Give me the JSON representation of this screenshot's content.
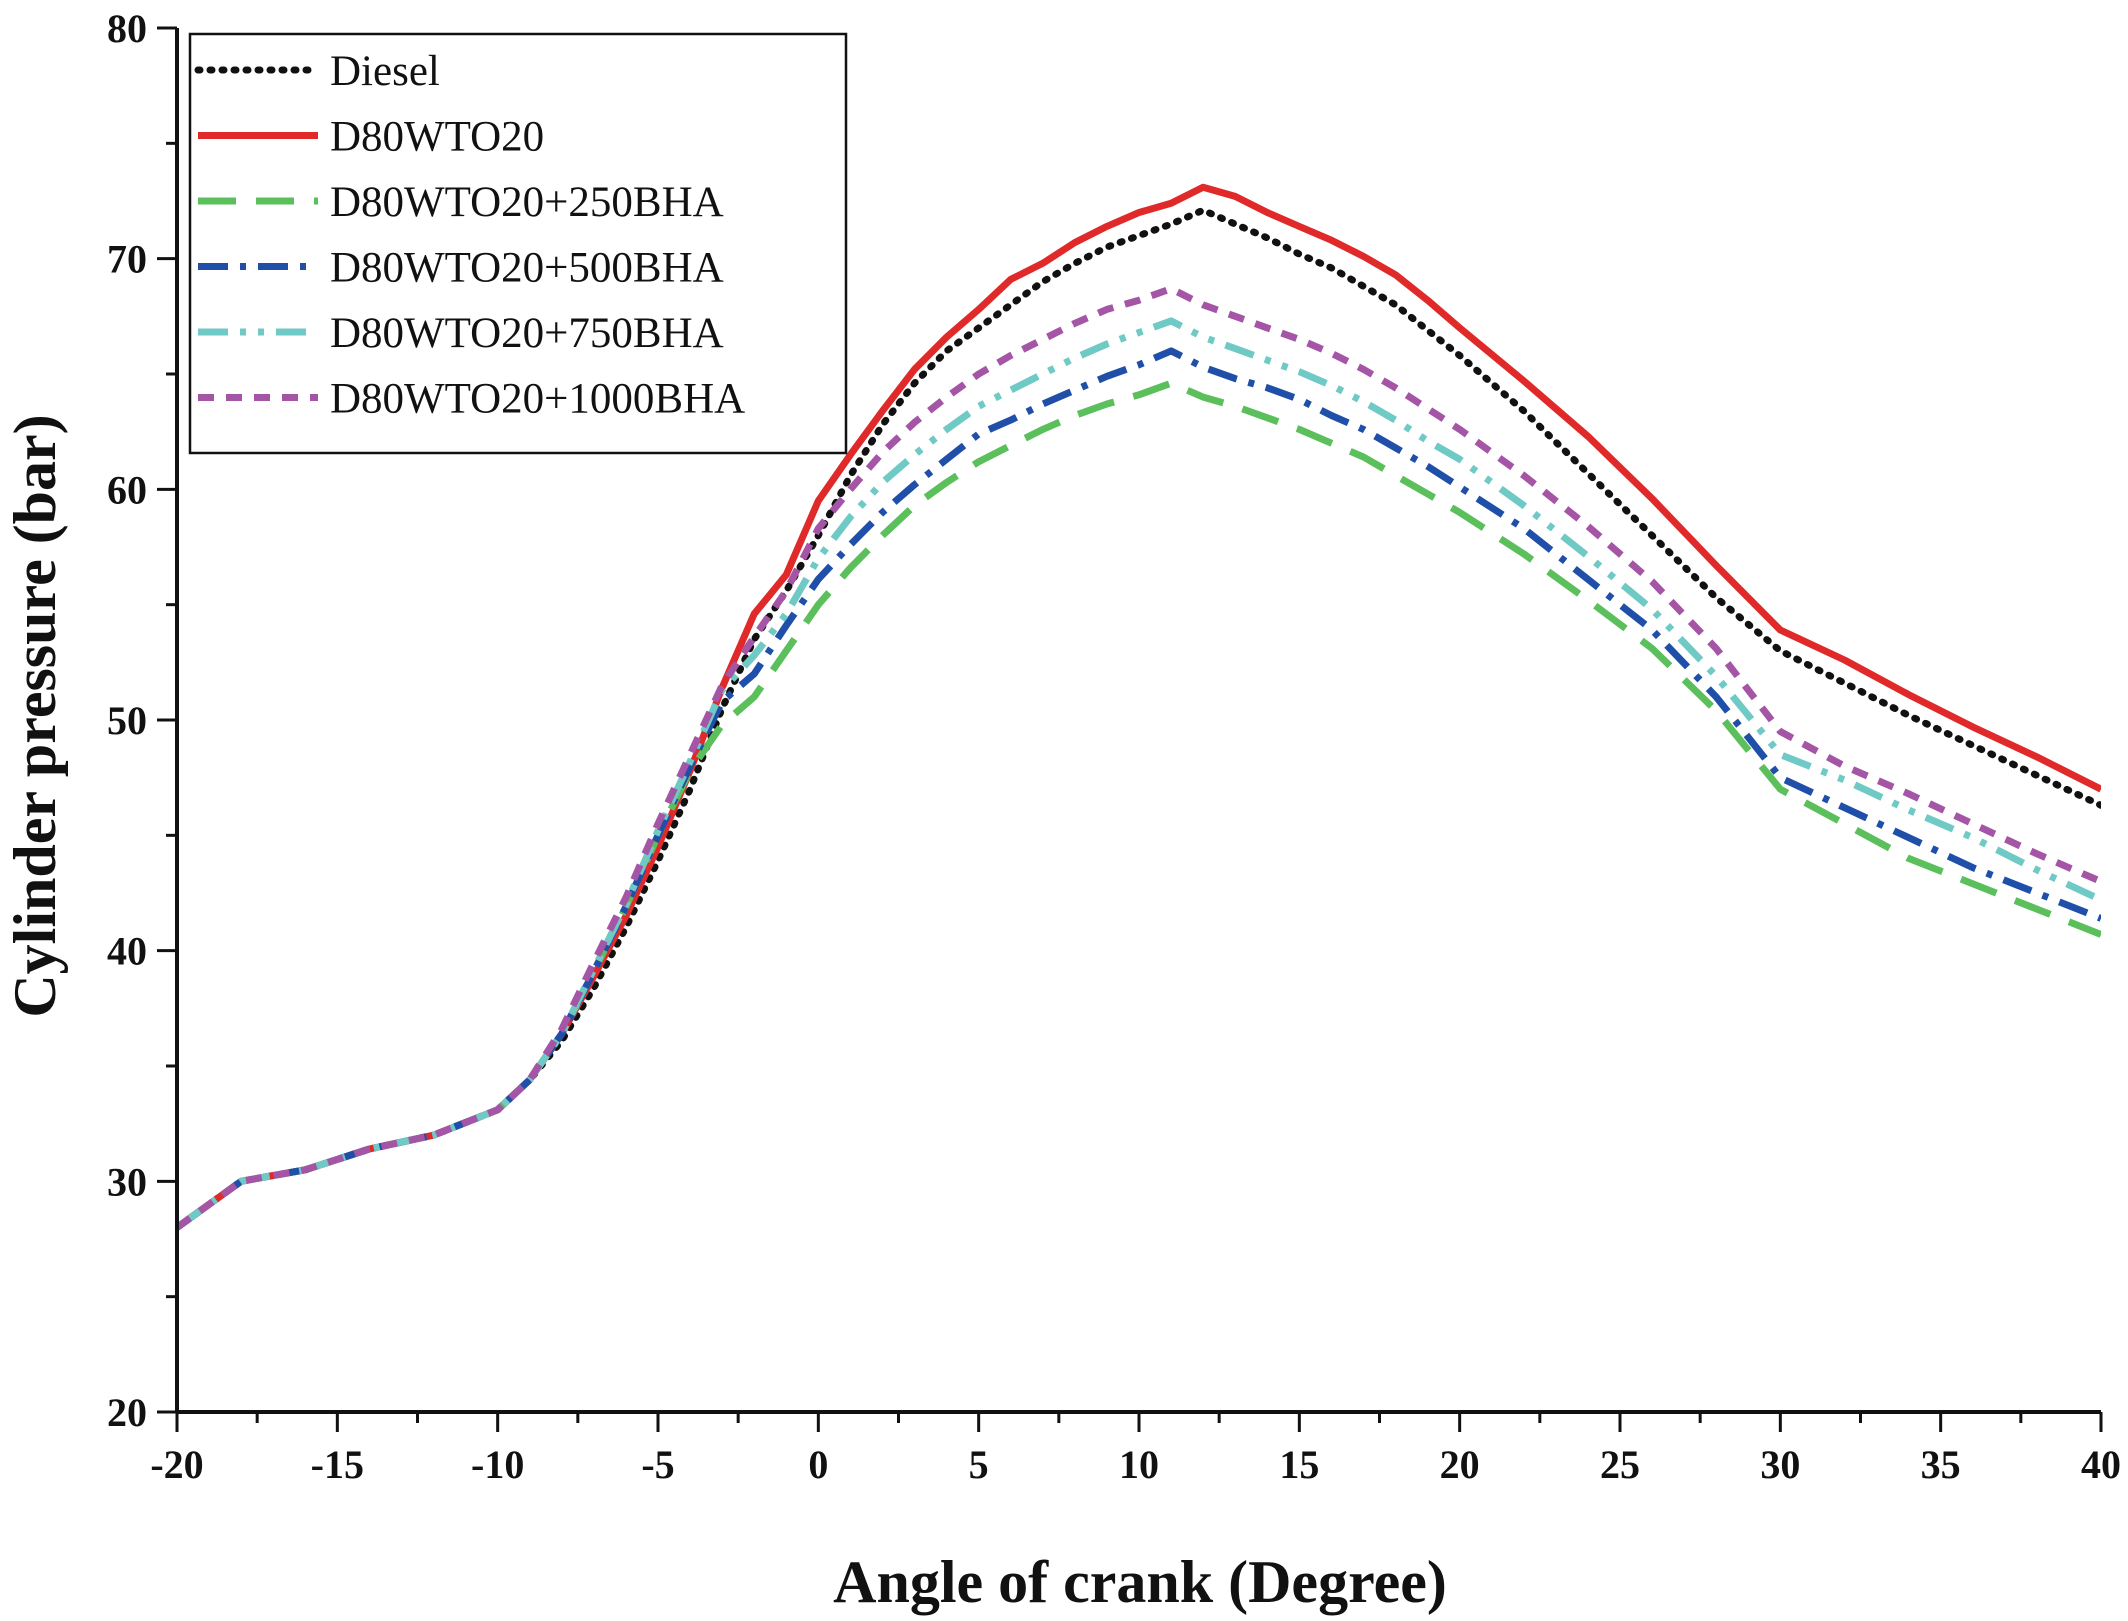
{
  "chart_data": {
    "type": "line",
    "title": "",
    "xlabel": "Angle of crank (Degree)",
    "ylabel": "Cylinder pressure (bar)",
    "xlim": [
      -20,
      40
    ],
    "ylim": [
      20,
      80
    ],
    "xticks": [
      -20,
      -15,
      -10,
      -5,
      0,
      5,
      10,
      15,
      20,
      25,
      30,
      35,
      40
    ],
    "yticks": [
      20,
      30,
      40,
      50,
      60,
      70,
      80
    ],
    "grid": false,
    "legend_position": "top-left",
    "series": [
      {
        "name": "Diesel",
        "color": "#111111",
        "dash": "dotted",
        "x": [
          -20,
          -18,
          -16,
          -14,
          -12,
          -10,
          -9,
          -8,
          -7,
          -6,
          -5,
          -4,
          -3,
          -2,
          -1,
          0,
          1,
          2,
          3,
          4,
          5,
          6,
          7,
          8,
          9,
          10,
          11,
          12,
          13,
          14,
          15,
          16,
          17,
          18,
          19,
          20,
          22,
          24,
          26,
          28,
          30,
          32,
          34,
          36,
          38,
          40
        ],
        "y": [
          28.0,
          30.0,
          30.5,
          31.4,
          32.0,
          33.1,
          34.4,
          36.1,
          38.4,
          41.0,
          43.9,
          47.0,
          50.5,
          53.5,
          55.6,
          58.0,
          60.6,
          62.8,
          64.6,
          66.0,
          67.0,
          68.0,
          69.0,
          69.8,
          70.5,
          71.0,
          71.5,
          72.1,
          71.5,
          70.9,
          70.2,
          69.6,
          68.8,
          68.0,
          66.9,
          65.8,
          63.4,
          60.7,
          58.0,
          55.3,
          53.0,
          51.6,
          50.2,
          48.9,
          47.6,
          46.3
        ]
      },
      {
        "name": "D80WTO20",
        "color": "#e02a2a",
        "dash": "solid",
        "x": [
          -20,
          -18,
          -16,
          -14,
          -12,
          -10,
          -9,
          -8,
          -7,
          -6,
          -5,
          -4,
          -3,
          -2,
          -1,
          0,
          1,
          2,
          3,
          4,
          5,
          6,
          7,
          8,
          9,
          10,
          11,
          12,
          13,
          14,
          15,
          16,
          17,
          18,
          19,
          20,
          22,
          24,
          26,
          28,
          30,
          32,
          34,
          36,
          38,
          40
        ],
        "y": [
          28.0,
          30.0,
          30.5,
          31.4,
          32.0,
          33.1,
          34.4,
          36.4,
          38.9,
          41.5,
          44.5,
          47.8,
          51.4,
          54.6,
          56.3,
          59.5,
          61.5,
          63.4,
          65.2,
          66.6,
          67.8,
          69.1,
          69.8,
          70.7,
          71.4,
          72.0,
          72.4,
          73.1,
          72.7,
          72.0,
          71.4,
          70.8,
          70.1,
          69.3,
          68.2,
          67.0,
          64.7,
          62.3,
          59.6,
          56.7,
          53.9,
          52.6,
          51.1,
          49.7,
          48.4,
          47.0
        ]
      },
      {
        "name": "D80WTO20+250BHA",
        "color": "#5bbf5b",
        "dash": "dashed",
        "x": [
          -20,
          -18,
          -16,
          -14,
          -12,
          -10,
          -9,
          -8,
          -7,
          -6,
          -5,
          -4,
          -3,
          -2,
          -1,
          0,
          1,
          2,
          3,
          4,
          5,
          6,
          7,
          8,
          9,
          10,
          11,
          12,
          13,
          14,
          15,
          16,
          17,
          18,
          19,
          20,
          22,
          24,
          26,
          28,
          30,
          32,
          34,
          36,
          38,
          40
        ],
        "y": [
          28.0,
          30.0,
          30.5,
          31.4,
          32.0,
          33.1,
          34.4,
          36.4,
          39.1,
          41.9,
          45.0,
          47.8,
          49.8,
          51.0,
          53.0,
          55.0,
          56.6,
          58.0,
          59.3,
          60.3,
          61.2,
          61.9,
          62.6,
          63.2,
          63.7,
          64.1,
          64.6,
          64.0,
          63.6,
          63.1,
          62.6,
          62.0,
          61.4,
          60.6,
          59.8,
          59.0,
          57.2,
          55.2,
          53.1,
          50.4,
          47.0,
          45.5,
          44.0,
          42.9,
          41.8,
          40.7
        ]
      },
      {
        "name": "D80WTO20+500BHA",
        "color": "#1f4fa8",
        "dash": "dashdot",
        "x": [
          -20,
          -18,
          -16,
          -14,
          -12,
          -10,
          -9,
          -8,
          -7,
          -6,
          -5,
          -4,
          -3,
          -2,
          -1,
          0,
          1,
          2,
          3,
          4,
          5,
          6,
          7,
          8,
          9,
          10,
          11,
          12,
          13,
          14,
          15,
          16,
          17,
          18,
          19,
          20,
          22,
          24,
          26,
          28,
          30,
          32,
          34,
          36,
          38,
          40
        ],
        "y": [
          28.0,
          30.0,
          30.5,
          31.4,
          32.0,
          33.1,
          34.4,
          36.4,
          39.1,
          41.9,
          45.0,
          48.0,
          50.8,
          52.0,
          54.1,
          56.1,
          57.6,
          59.0,
          60.2,
          61.3,
          62.4,
          63.0,
          63.7,
          64.3,
          64.9,
          65.4,
          66.0,
          65.3,
          64.8,
          64.4,
          63.9,
          63.2,
          62.6,
          61.8,
          61.0,
          60.1,
          58.3,
          56.1,
          53.9,
          51.0,
          47.5,
          46.2,
          44.9,
          43.6,
          42.5,
          41.4
        ]
      },
      {
        "name": "D80WTO20+750BHA",
        "color": "#6fc9c4",
        "dash": "dashdotdot",
        "x": [
          -20,
          -18,
          -16,
          -14,
          -12,
          -10,
          -9,
          -8,
          -7,
          -6,
          -5,
          -4,
          -3,
          -2,
          -1,
          0,
          1,
          2,
          3,
          4,
          5,
          6,
          7,
          8,
          9,
          10,
          11,
          12,
          13,
          14,
          15,
          16,
          17,
          18,
          19,
          20,
          22,
          24,
          26,
          28,
          30,
          32,
          34,
          36,
          38,
          40
        ],
        "y": [
          28.0,
          30.0,
          30.5,
          31.4,
          32.0,
          33.1,
          34.4,
          36.4,
          39.2,
          42.0,
          45.2,
          48.2,
          51.3,
          52.8,
          54.6,
          57.0,
          58.8,
          60.3,
          61.5,
          62.6,
          63.6,
          64.3,
          65.0,
          65.7,
          66.3,
          66.8,
          67.3,
          66.6,
          66.1,
          65.6,
          65.1,
          64.5,
          63.8,
          63.0,
          62.1,
          61.3,
          59.3,
          57.1,
          54.8,
          51.9,
          48.5,
          47.4,
          46.1,
          44.9,
          43.5,
          42.2
        ]
      },
      {
        "name": "D80WTO20+1000BHA",
        "color": "#a455a6",
        "dash": "shortdash",
        "x": [
          -20,
          -18,
          -16,
          -14,
          -12,
          -10,
          -9,
          -8,
          -7,
          -6,
          -5,
          -4,
          -3,
          -2,
          -1,
          0,
          1,
          2,
          3,
          4,
          5,
          6,
          7,
          8,
          9,
          10,
          11,
          12,
          13,
          14,
          15,
          16,
          17,
          18,
          19,
          20,
          22,
          24,
          26,
          28,
          30,
          32,
          34,
          36,
          38,
          40
        ],
        "y": [
          28.0,
          30.0,
          30.5,
          31.4,
          32.0,
          33.1,
          34.4,
          36.6,
          39.5,
          42.3,
          45.5,
          48.5,
          51.5,
          53.6,
          55.6,
          58.3,
          60.0,
          61.6,
          62.9,
          64.0,
          65.0,
          65.8,
          66.5,
          67.2,
          67.8,
          68.2,
          68.7,
          68.0,
          67.5,
          67.0,
          66.5,
          65.9,
          65.2,
          64.4,
          63.5,
          62.6,
          60.6,
          58.4,
          56.0,
          53.1,
          49.5,
          48.0,
          46.8,
          45.5,
          44.2,
          43.0
        ]
      }
    ]
  }
}
